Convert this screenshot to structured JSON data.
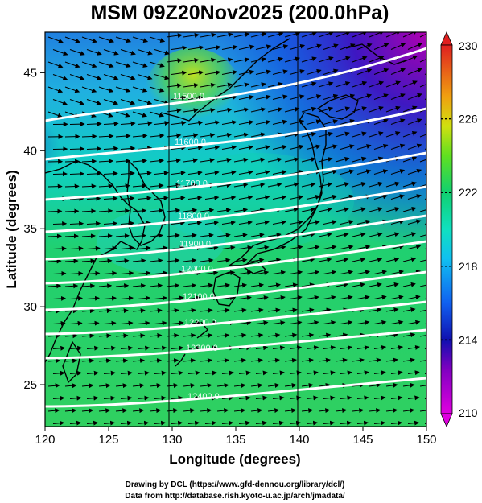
{
  "title": "MSM 09Z20Nov2025 (200.0hPa)",
  "x_axis": {
    "label": "Longitude (degrees)",
    "ticks": [
      "120",
      "125",
      "130",
      "135",
      "140",
      "145",
      "150"
    ]
  },
  "y_axis": {
    "label": "Latitude  (degrees)",
    "ticks": [
      "25",
      "30",
      "35",
      "40",
      "45"
    ]
  },
  "colorbar": {
    "ticks": [
      "210",
      "214",
      "218",
      "222",
      "226",
      "230"
    ]
  },
  "contour_labels": [
    "11500.0",
    "11600.0",
    "11700.0",
    "11800.0",
    "11900.0",
    "12000.0",
    "12100.0",
    "12200.0",
    "12300.0",
    "12400.0"
  ],
  "footer": {
    "line1": "Drawing by DCL (https://www.gfd-dennou.org/library/dcl/)",
    "line2": "Data from http://database.rish.kyoto-u.ac.jp/arch/jmadata/"
  },
  "colors": {
    "low": "#d000d0",
    "mid_low": "#1040e0",
    "mid": "#10e0c0",
    "mid_high": "#20e060",
    "high": "#e04020"
  }
}
